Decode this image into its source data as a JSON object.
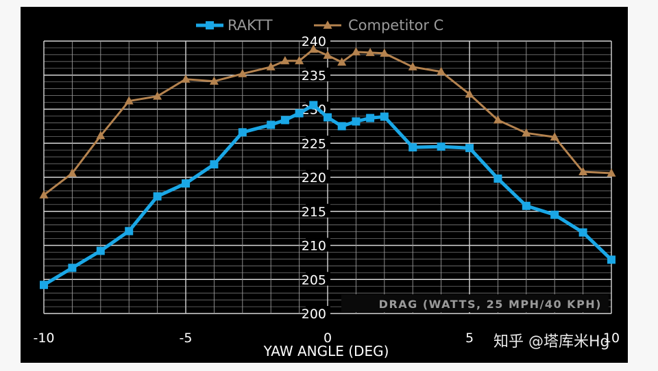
{
  "chart_data": {
    "type": "line",
    "title": "",
    "xlabel": "YAW ANGLE (DEG)",
    "ylabel": "",
    "annotation": "DRAG (WATTS, 25 MPH/40 KPH)",
    "xlim": [
      -10,
      10
    ],
    "ylim": [
      200,
      240
    ],
    "x_ticks": [
      "-10",
      "-5",
      "0",
      "5",
      "10"
    ],
    "y_ticks": [
      "200",
      "205",
      "210",
      "215",
      "220",
      "225",
      "230",
      "235",
      "240"
    ],
    "legend_position": "top-center",
    "grid": true,
    "series": [
      {
        "name": "RAKTT",
        "color": "#1aa7e6",
        "marker": "square",
        "x": [
          -10,
          -9,
          -8,
          -7,
          -6,
          -5,
          -4,
          -3,
          -2,
          -1.5,
          -1,
          -0.5,
          0,
          0.5,
          1,
          1.5,
          2,
          3,
          4,
          5,
          6,
          7,
          8,
          9,
          10
        ],
        "y": [
          204.2,
          206.7,
          209.2,
          212.1,
          217.2,
          219.1,
          221.9,
          226.6,
          227.7,
          228.4,
          229.4,
          230.6,
          228.8,
          227.5,
          228.2,
          228.7,
          228.9,
          224.4,
          224.5,
          224.3,
          219.8,
          215.8,
          214.5,
          211.9,
          207.9
        ]
      },
      {
        "name": "Competitor C",
        "color": "#b5834f",
        "marker": "triangle",
        "x": [
          -10,
          -9,
          -8,
          -7,
          -6,
          -5,
          -4,
          -3,
          -2,
          -1.5,
          -1,
          -0.5,
          0,
          0.5,
          1,
          1.5,
          2,
          3,
          4,
          5,
          6,
          7,
          8,
          9,
          10
        ],
        "y": [
          217.4,
          220.6,
          226.1,
          231.2,
          231.9,
          234.4,
          234.1,
          235.2,
          236.2,
          237.1,
          237.1,
          238.8,
          237.9,
          236.9,
          238.4,
          238.3,
          238.2,
          236.2,
          235.5,
          232.2,
          228.4,
          226.5,
          225.9,
          220.8,
          220.6
        ]
      }
    ]
  },
  "watermark": {
    "text": "知乎 @塔库米Hg"
  }
}
